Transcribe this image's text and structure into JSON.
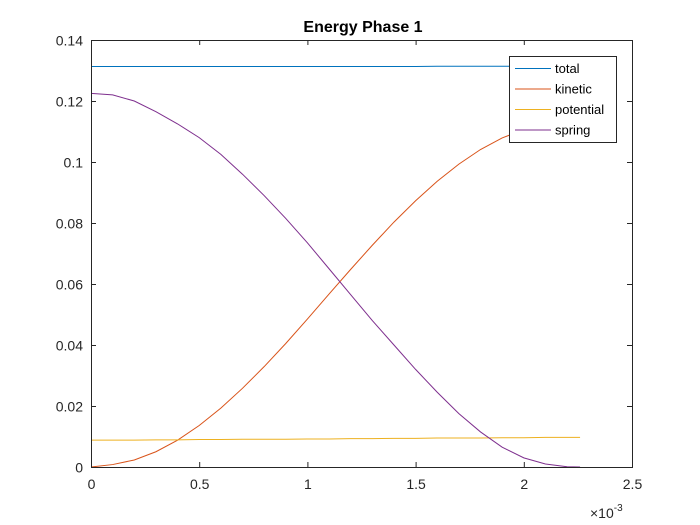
{
  "chart_data": {
    "type": "line",
    "title": "Energy Phase 1",
    "xlabel": "",
    "ylabel": "",
    "xlim": [
      0,
      0.0025
    ],
    "ylim": [
      0,
      0.14
    ],
    "x_tick_labels": [
      "0",
      "0.5",
      "1",
      "1.5",
      "2",
      "2.5"
    ],
    "x_tick_values": [
      0,
      0.0005,
      0.001,
      0.0015,
      0.002,
      0.0025
    ],
    "y_tick_labels": [
      "0",
      "0.02",
      "0.04",
      "0.06",
      "0.08",
      "0.1",
      "0.12",
      "0.14"
    ],
    "y_tick_values": [
      0,
      0.02,
      0.04,
      0.06,
      0.08,
      0.1,
      0.12,
      0.14
    ],
    "x_exponent_base": "×10",
    "x_exponent_power": "-3",
    "grid": false,
    "legend_position": "top-right",
    "x": [
      0,
      0.0001,
      0.0002,
      0.0003,
      0.0004,
      0.0005,
      0.0006,
      0.0007,
      0.0008,
      0.0009,
      0.001,
      0.0011,
      0.0012,
      0.0013,
      0.0014,
      0.0015,
      0.0016,
      0.0017,
      0.0018,
      0.0019,
      0.002,
      0.0021,
      0.0022,
      0.00226
    ],
    "series": [
      {
        "name": "total",
        "color": "#0072BD",
        "values": [
          0.1313,
          0.1313,
          0.1313,
          0.1313,
          0.1313,
          0.1313,
          0.1313,
          0.1313,
          0.1313,
          0.1313,
          0.1313,
          0.1313,
          0.1313,
          0.1313,
          0.1313,
          0.1313,
          0.1314,
          0.1314,
          0.1314,
          0.1314,
          0.1314,
          0.1314,
          0.1314,
          0.1314
        ]
      },
      {
        "name": "kinetic",
        "color": "#D95319",
        "values": [
          0,
          0.0008,
          0.0023,
          0.005,
          0.0088,
          0.0136,
          0.0193,
          0.0258,
          0.0329,
          0.0405,
          0.0485,
          0.0567,
          0.0648,
          0.0727,
          0.0803,
          0.0873,
          0.0937,
          0.0993,
          0.1041,
          0.1079,
          0.1106,
          0.1122,
          0.1225,
          0.1225
        ]
      },
      {
        "name": "potential",
        "color": "#EDB120",
        "values": [
          0.0088,
          0.0088,
          0.0088,
          0.0089,
          0.0089,
          0.009,
          0.009,
          0.0091,
          0.0091,
          0.0091,
          0.0092,
          0.0092,
          0.0093,
          0.0093,
          0.0094,
          0.0094,
          0.0095,
          0.0095,
          0.0095,
          0.0096,
          0.0096,
          0.0097,
          0.0097,
          0.0097
        ]
      },
      {
        "name": "spring",
        "color": "#7E2F8E",
        "values": [
          0.1225,
          0.122,
          0.12,
          0.1165,
          0.1125,
          0.108,
          0.1025,
          0.096,
          0.089,
          0.0815,
          0.0735,
          0.065,
          0.0565,
          0.048,
          0.04,
          0.032,
          0.0245,
          0.0175,
          0.0115,
          0.0065,
          0.003,
          0.001,
          0.0001,
          0
        ]
      }
    ]
  }
}
